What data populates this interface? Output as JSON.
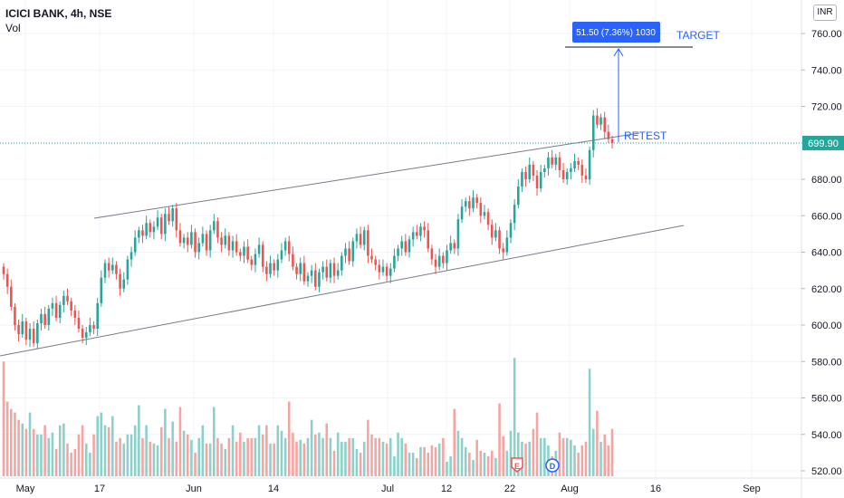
{
  "header": {
    "title": "ICICI BANK, 4h, NSE",
    "volume_label": "Vol"
  },
  "currency_button": "INR",
  "price_tag": {
    "value": "699.90",
    "bg": "#26a69a"
  },
  "annotations": {
    "target_label": "TARGET",
    "retest_label": "RETEST",
    "measure_box": "51.50 (7.36%) 1030",
    "accent": "#2962ff"
  },
  "event_markers": [
    {
      "letter": "E",
      "date": "Jul 22",
      "color": "#ef5350"
    },
    {
      "letter": "D",
      "date": "Jul 29",
      "color": "#2962ff"
    }
  ],
  "colors": {
    "up": "#26a69a",
    "down": "#ef5350",
    "vol_up": "#8cd0c9",
    "vol_down": "#f5a4a2",
    "grid": "#f0f3fa",
    "axis_text": "#131722",
    "trendline": "#787b86"
  },
  "chart_data": {
    "type": "candlestick",
    "title": "ICICI BANK, 4h, NSE",
    "series": [
      "Vol"
    ],
    "xlabel": "",
    "ylabel": "INR",
    "ylim": [
      518,
      770
    ],
    "y_ticks": [
      760,
      740,
      720,
      700,
      680,
      660,
      640,
      620,
      600,
      580,
      560,
      540,
      520
    ],
    "x_ticks": [
      "May",
      "17",
      "Jun",
      "14",
      "Jul",
      "12",
      "22",
      "Aug",
      "16",
      "Sep"
    ],
    "grid": true,
    "last_price": 699.9,
    "candles_close": [
      628,
      621,
      610,
      600,
      595,
      602,
      592,
      598,
      590,
      601,
      606,
      600,
      609,
      612,
      604,
      611,
      616,
      613,
      608,
      604,
      598,
      593,
      596,
      600,
      598,
      612,
      626,
      634,
      630,
      633,
      628,
      620,
      625,
      636,
      640,
      648,
      652,
      649,
      656,
      651,
      654,
      659,
      650,
      661,
      657,
      664,
      652,
      645,
      648,
      644,
      651,
      640,
      645,
      650,
      641,
      652,
      657,
      648,
      644,
      649,
      641,
      646,
      640,
      638,
      643,
      636,
      633,
      639,
      644,
      632,
      628,
      634,
      630,
      636,
      641,
      646,
      639,
      632,
      628,
      634,
      624,
      627,
      630,
      621,
      629,
      632,
      626,
      634,
      627,
      630,
      638,
      642,
      635,
      646,
      650,
      644,
      652,
      638,
      636,
      633,
      629,
      632,
      627,
      631,
      638,
      642,
      646,
      640,
      647,
      651,
      649,
      654,
      652,
      642,
      636,
      632,
      638,
      634,
      641,
      645,
      642,
      658,
      665,
      668,
      664,
      670,
      667,
      660,
      662,
      655,
      648,
      652,
      642,
      640,
      648,
      656,
      666,
      676,
      684,
      680,
      688,
      682,
      675,
      684,
      686,
      692,
      688,
      692,
      685,
      680,
      684,
      686,
      690,
      688,
      682,
      680,
      696,
      715,
      710,
      714,
      706,
      702,
      699.9
    ],
    "volume": [
      580,
      558,
      554,
      552,
      548,
      546,
      543,
      552,
      543,
      540,
      540,
      545,
      538,
      541,
      532,
      545,
      546,
      535,
      530,
      532,
      540,
      545,
      535,
      530,
      540,
      550,
      552,
      545,
      544,
      550,
      536,
      538,
      535,
      540,
      540,
      545,
      556,
      538,
      545,
      536,
      535,
      534,
      544,
      554,
      538,
      547,
      536,
      555,
      542,
      540,
      537,
      530,
      538,
      545,
      535,
      535,
      555,
      538,
      535,
      532,
      538,
      545,
      536,
      541,
      536,
      538,
      538,
      538,
      545,
      540,
      545,
      535,
      535,
      545,
      542,
      538,
      558,
      541,
      536,
      537,
      535,
      538,
      548,
      540,
      541,
      538,
      546,
      538,
      531,
      541,
      536,
      536,
      538,
      538,
      532,
      530,
      536,
      548,
      540,
      538,
      538,
      536,
      535,
      538,
      528,
      541,
      538,
      535,
      530,
      530,
      527,
      533,
      533,
      530,
      534,
      533,
      535,
      538,
      525,
      528,
      554,
      542,
      538,
      533,
      530,
      526,
      537,
      531,
      530,
      528,
      531,
      527,
      557,
      539,
      531,
      542,
      582,
      541,
      536,
      535,
      536,
      543,
      552,
      538,
      538,
      534,
      528,
      531,
      541,
      538,
      538,
      537,
      534,
      530,
      534,
      536,
      576,
      543,
      553,
      536,
      540,
      534,
      543
    ]
  }
}
